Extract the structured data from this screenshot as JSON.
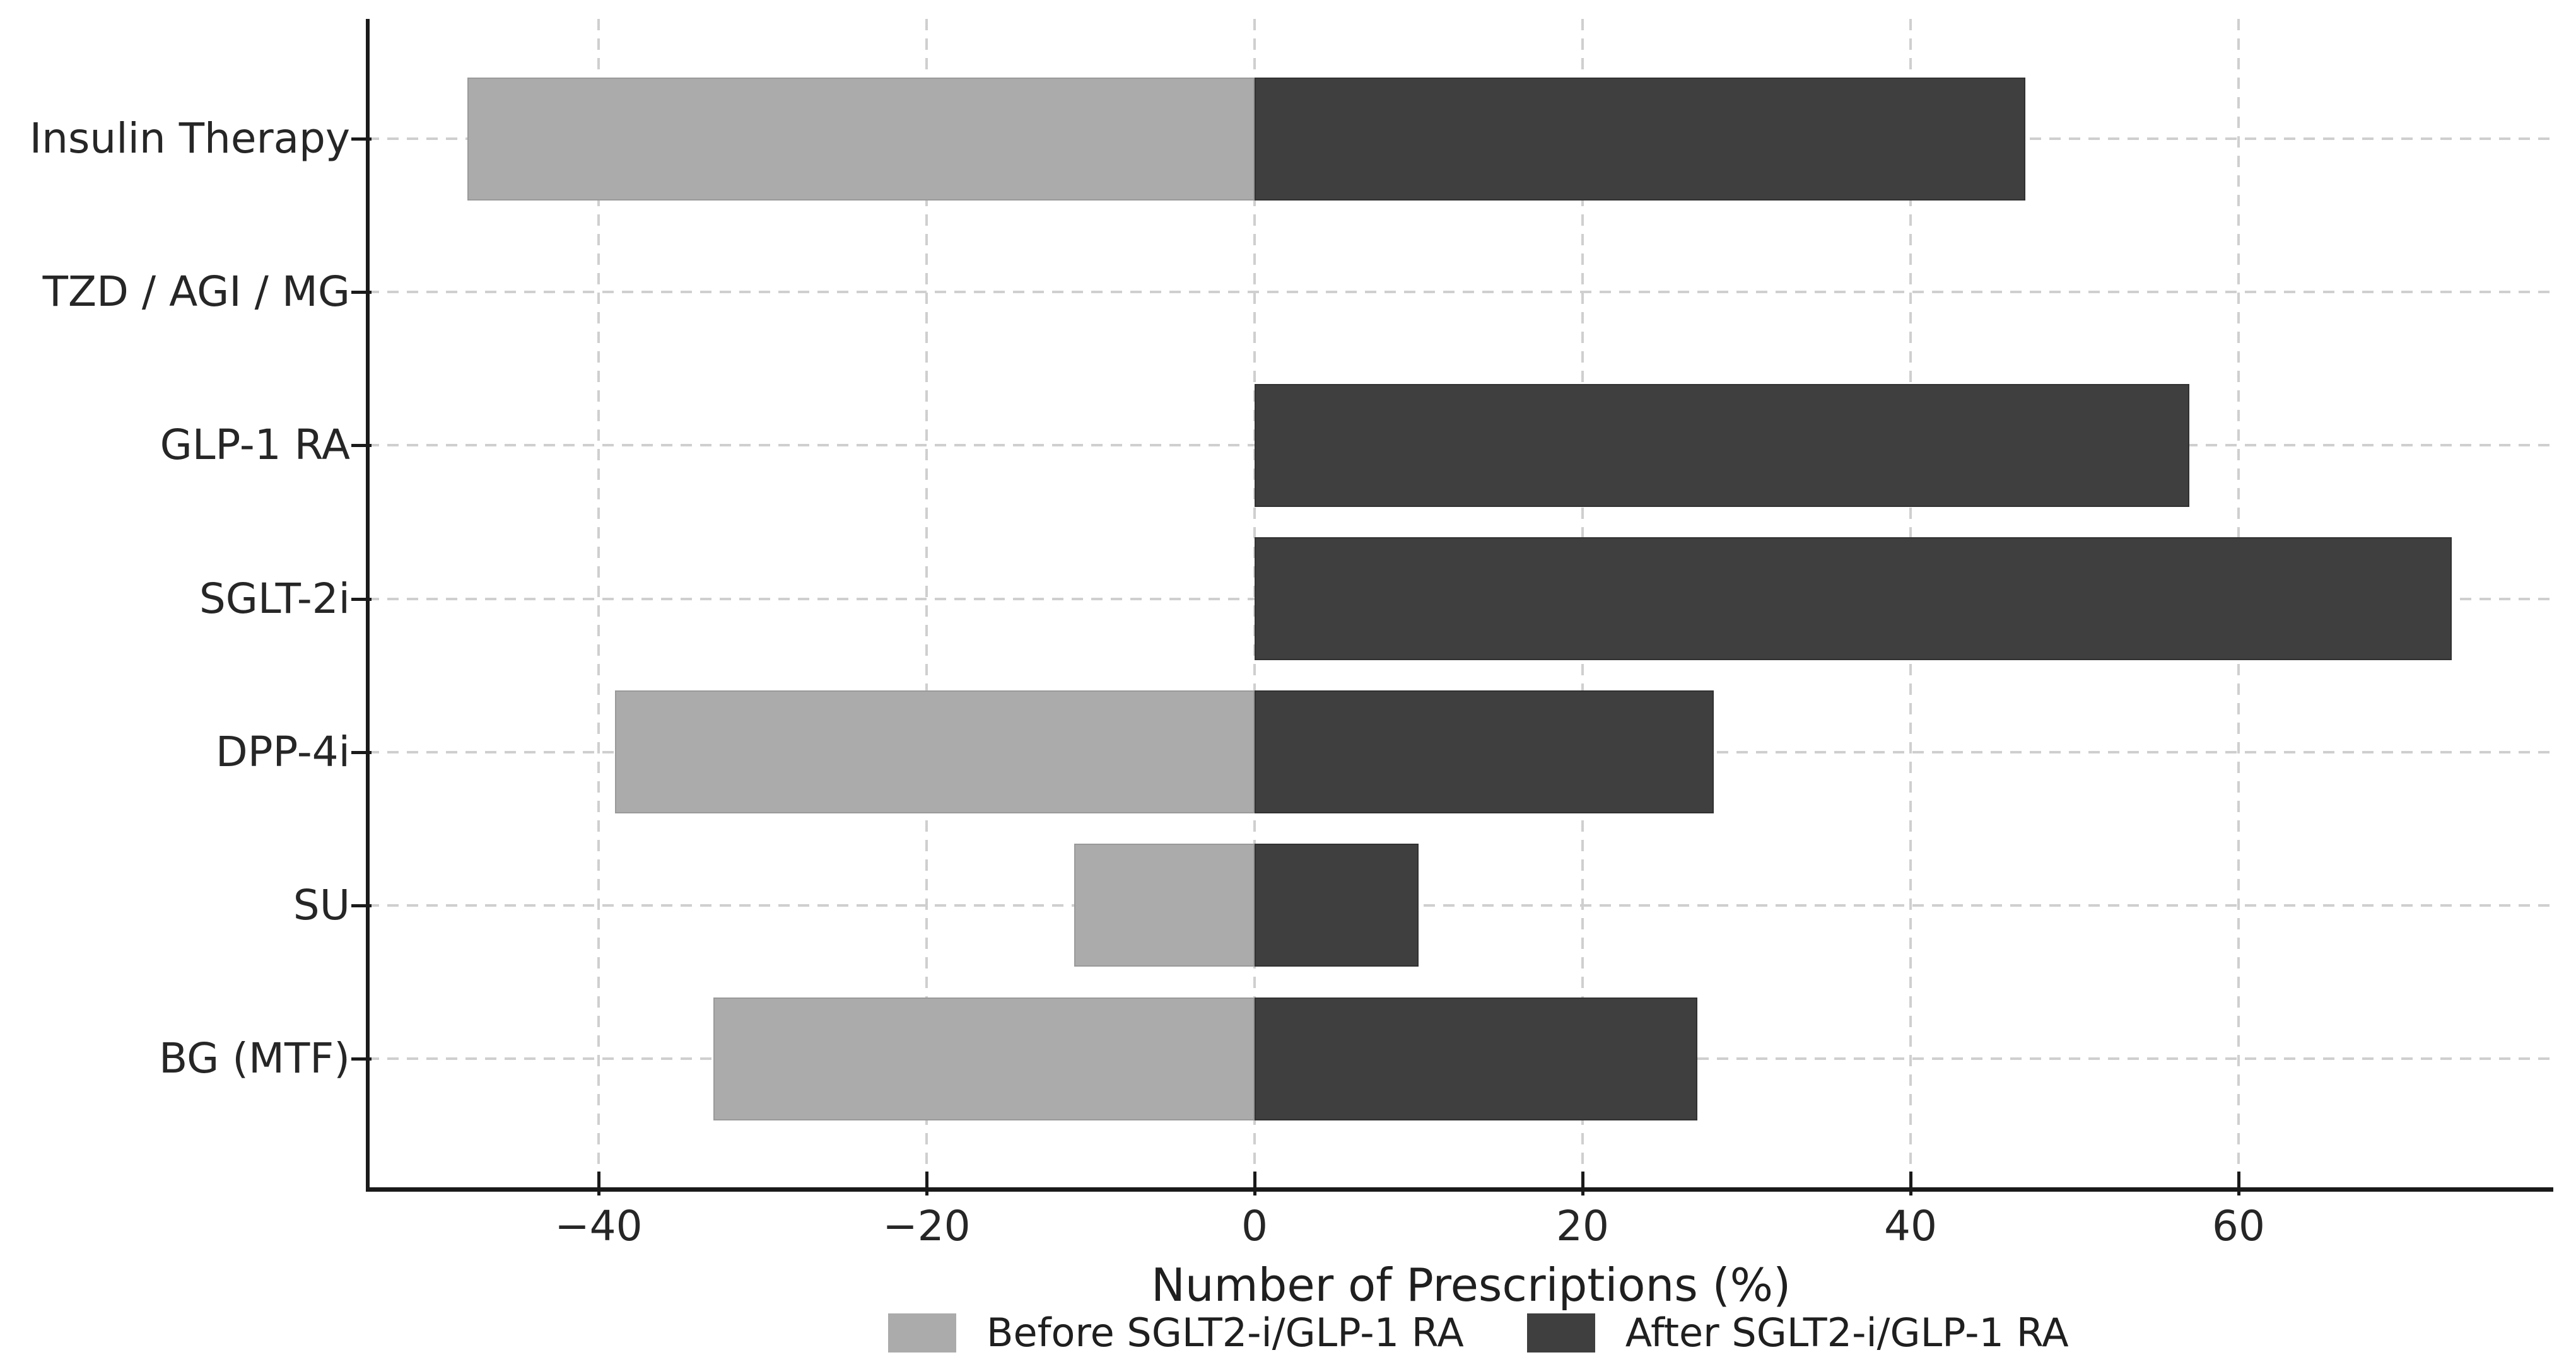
{
  "chart_data": {
    "type": "bar",
    "orientation": "horizontal",
    "title": "",
    "xlabel": "Number of Prescriptions (%)",
    "ylabel": "",
    "categories": [
      "Insulin Therapy",
      "TZD / AGI / MG",
      "GLP-1 RA",
      "SGLT-2i",
      "DPP-4i",
      "SU",
      "BG (MTF)"
    ],
    "series": [
      {
        "name": "Before SGLT2-i/GLP-1 RA",
        "color": "#ababab",
        "values": [
          -48,
          0,
          0,
          0,
          -39,
          -11,
          -33
        ]
      },
      {
        "name": "After SGLT2-i/GLP-1 RA",
        "color": "#3f3f3f",
        "values": [
          47,
          0,
          57,
          73,
          28,
          10,
          27
        ]
      }
    ],
    "x_ticks": [
      -40,
      -20,
      0,
      20,
      40,
      60
    ],
    "x_tick_labels": [
      "−40",
      "−20",
      "0",
      "20",
      "40",
      "60"
    ],
    "xlim": [
      -54,
      79
    ],
    "grid": "dashed-both-axes",
    "grid_color": "#cfcfcf",
    "background_color": "#ffffff",
    "legend_position": "bottom-center"
  }
}
